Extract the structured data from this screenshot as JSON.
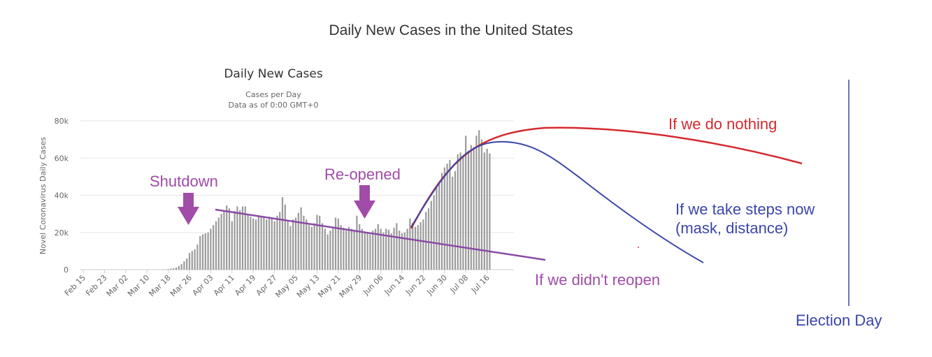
{
  "page": {
    "title": "Daily New Cases in the United States"
  },
  "colors": {
    "bars": "#9b9b9b",
    "grid": "#e6e6e6",
    "axis_text": "#666666",
    "red": "#d42a2f",
    "blue": "#3a46a8",
    "purple": "#a04ca8",
    "purple_line": "#8a4aa6"
  },
  "chart_data": {
    "type": "bar",
    "title": "Daily New Cases",
    "subtitle_lines": [
      "Cases per Day",
      "Data as of 0:00 GMT+0"
    ],
    "ylabel": "Novel Coronavirus Daily Cases",
    "xlabel": "",
    "ylim": [
      0,
      80000
    ],
    "y_ticks": [
      {
        "value": 0,
        "label": "0"
      },
      {
        "value": 20000,
        "label": "20k"
      },
      {
        "value": 40000,
        "label": "40k"
      },
      {
        "value": 60000,
        "label": "60k"
      },
      {
        "value": 80000,
        "label": "80k"
      }
    ],
    "grid": true,
    "x_tick_labels": [
      "Feb 15",
      "Feb 23",
      "Mar 02",
      "Mar 10",
      "Mar 18",
      "Mar 26",
      "Apr 03",
      "Apr 11",
      "Apr 19",
      "Apr 27",
      "May 05",
      "May 13",
      "May 21",
      "May 29",
      "Jun 06",
      "Jun 14",
      "Jun 22",
      "Jun 30",
      "Jul 08",
      "Jul 16"
    ],
    "start_date": "Feb 15",
    "series": [
      {
        "values": [
          0,
          0,
          0,
          0,
          0,
          0,
          0,
          0,
          0,
          0,
          0,
          0,
          0,
          0,
          0,
          0,
          0,
          0,
          0,
          0,
          0,
          0,
          0,
          0,
          0,
          0,
          0,
          0,
          0,
          0,
          100,
          200,
          300,
          600,
          800,
          1200,
          2000,
          3000,
          4500,
          6000,
          9000,
          10000,
          11000,
          13500,
          18000,
          19000,
          19500,
          20000,
          22000,
          24000,
          26000,
          28000,
          30000,
          31500,
          34500,
          33000,
          26000,
          31500,
          34000,
          32000,
          34000,
          34000,
          30000,
          28500,
          27500,
          27000,
          29000,
          28500,
          28000,
          27000,
          28500,
          27500,
          26000,
          29000,
          31000,
          39000,
          35000,
          26000,
          23500,
          27000,
          28000,
          30500,
          33500,
          29000,
          27000,
          24000,
          23000,
          25000,
          29500,
          29000,
          25000,
          22000,
          19000,
          21000,
          23000,
          28000,
          27500,
          24000,
          22500,
          21000,
          23000,
          22000,
          20500,
          29000,
          24500,
          22000,
          20500,
          19500,
          19000,
          21000,
          22000,
          24500,
          22000,
          20000,
          22000,
          21500,
          19500,
          22500,
          25000,
          21000,
          19500,
          20000,
          22000,
          27500,
          25000,
          23000,
          24000,
          25500,
          27000,
          31000,
          33000,
          37000,
          40000,
          44000,
          46000,
          52000,
          55000,
          57000,
          59000,
          50000,
          53000,
          62000,
          63000,
          61000,
          72000,
          64000,
          67000,
          66000,
          72000,
          75000,
          70000,
          63000,
          65000,
          62500
        ]
      }
    ],
    "annotations": {
      "shutdown": "Shutdown",
      "reopened": "Re-opened",
      "do_nothing": "If we do nothing",
      "take_steps_line1": "If we take steps now",
      "take_steps_line2": "(mask, distance)",
      "didnt_reopen": "If we didn't reopen",
      "election_day": "Election Day"
    }
  }
}
